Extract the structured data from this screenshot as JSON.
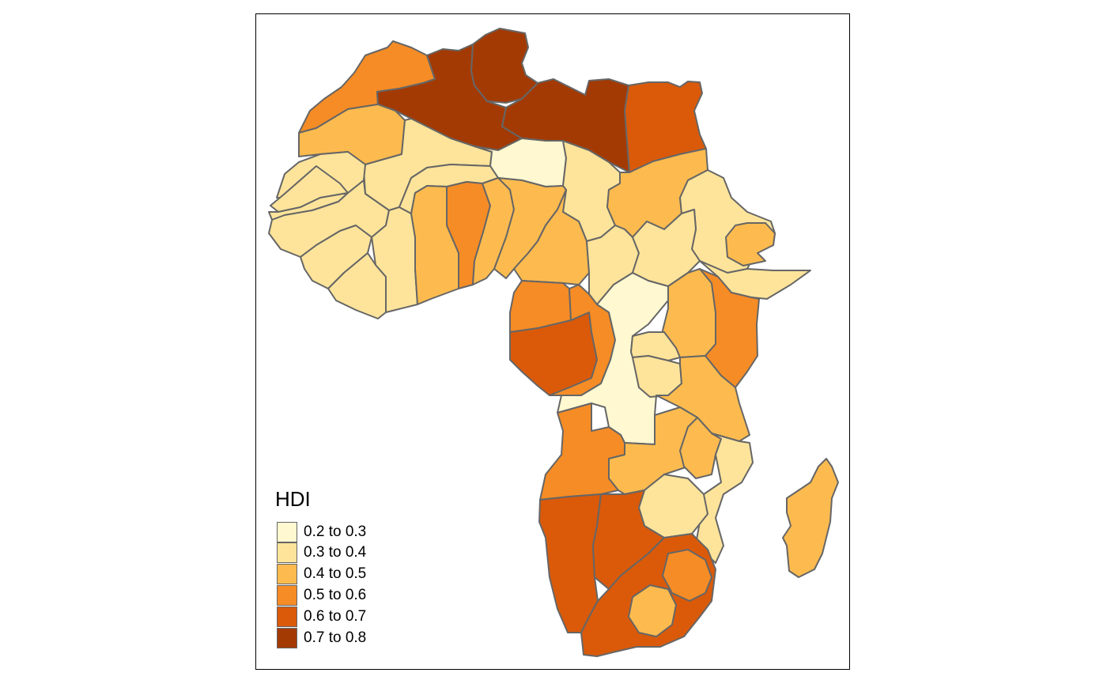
{
  "legend": {
    "title": "HDI",
    "classes": [
      {
        "label": "0.2 to 0.3",
        "color": "#FFF8D0"
      },
      {
        "label": "0.3 to 0.4",
        "color": "#FEE49A"
      },
      {
        "label": "0.4 to 0.5",
        "color": "#FDBB4F"
      },
      {
        "label": "0.5 to 0.6",
        "color": "#F68C25"
      },
      {
        "label": "0.6 to 0.7",
        "color": "#DA5A0A"
      },
      {
        "label": "0.7 to 0.8",
        "color": "#A33A03"
      }
    ]
  },
  "map": {
    "variable": "HDI",
    "border_color": "#666666",
    "region_classes": {
      "morocco": 3,
      "algeria": 5,
      "tunisia": 5,
      "libya": 5,
      "egypt": 4,
      "western-sahara": 2,
      "mauritania": 1,
      "mali": 1,
      "niger": 0,
      "chad": 1,
      "sudan": 2,
      "eritrea": 1,
      "ethiopia": 1,
      "djibouti": 2,
      "somalia": 1,
      "senegal": 1,
      "gambia": 1,
      "guinea-bissau": 1,
      "guinea": 1,
      "sierra-leone": 1,
      "liberia": 1,
      "cote-divoire": 1,
      "burkina-faso": 1,
      "ghana": 2,
      "togo": 3,
      "benin": 2,
      "nigeria": 2,
      "cameroon": 2,
      "central-african-republic": 1,
      "south-sudan": 1,
      "equatorial-guinea": 3,
      "gabon": 4,
      "congo": 3,
      "dr-congo": 0,
      "uganda": 2,
      "kenya": 3,
      "rwanda": 1,
      "burundi": 1,
      "tanzania": 2,
      "angola": 3,
      "zambia": 2,
      "malawi": 2,
      "mozambique": 1,
      "zimbabwe": 1,
      "namibia": 4,
      "botswana": 4,
      "south-africa": 4,
      "eswatini": 3,
      "lesotho": 2,
      "madagascar": 2
    }
  }
}
